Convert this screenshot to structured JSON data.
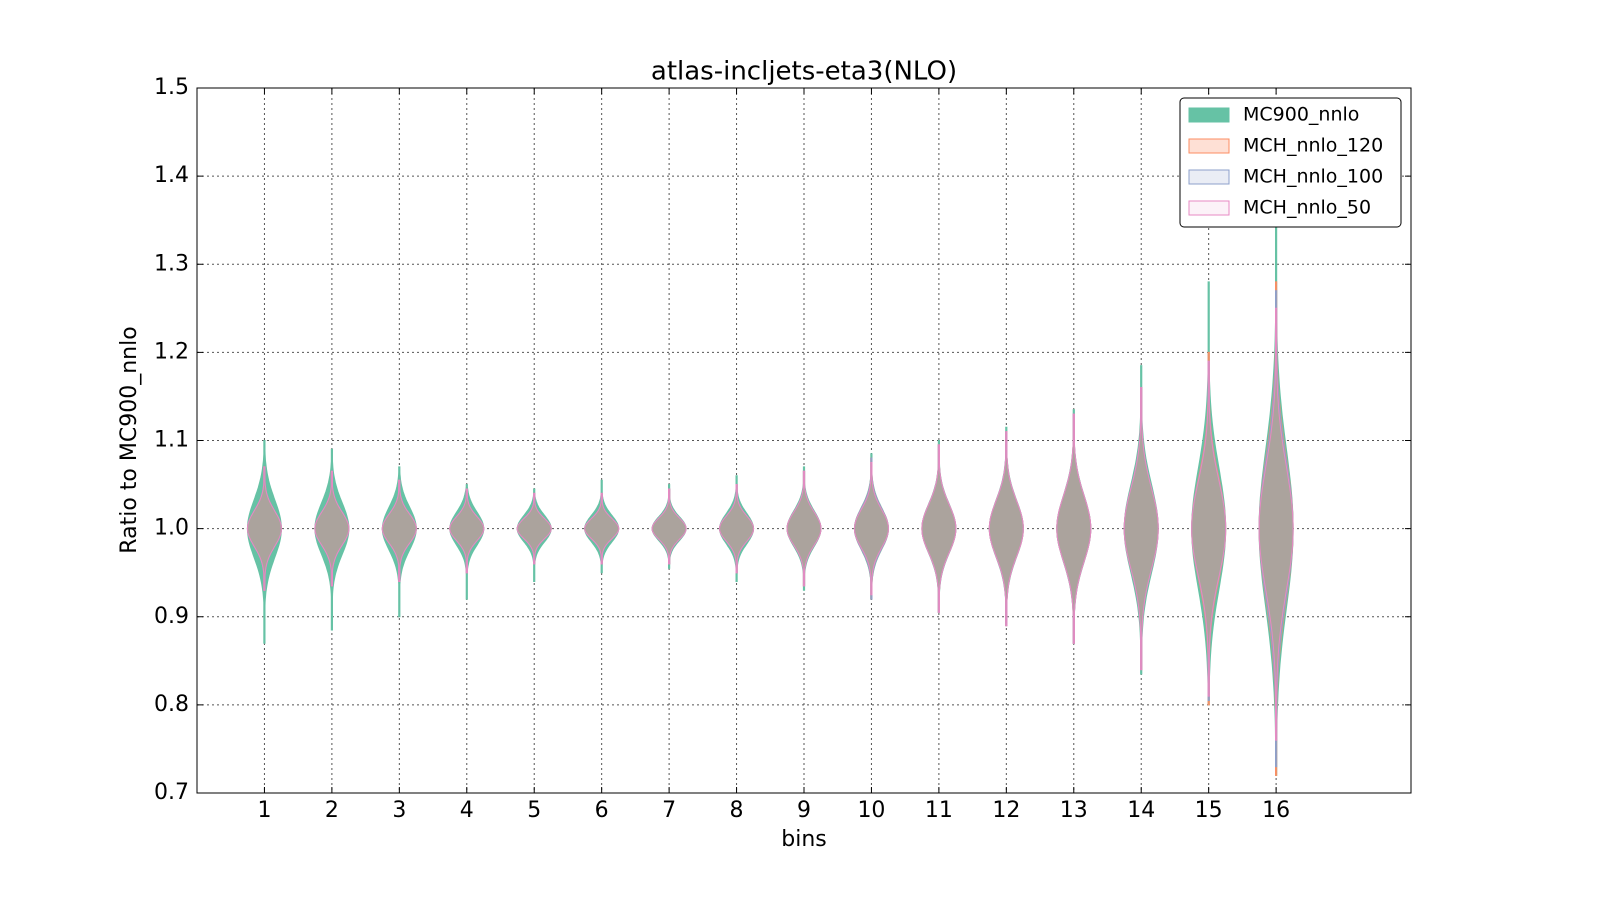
{
  "chart_data": {
    "type": "violin",
    "title": "atlas-incljets-eta3(NLO)",
    "x_label": "bins",
    "y_label": "Ratio to MC900_nnlo",
    "x": [
      1,
      2,
      3,
      4,
      5,
      6,
      7,
      8,
      9,
      10,
      11,
      12,
      13,
      14,
      15,
      16
    ],
    "xlim": [
      0,
      18
    ],
    "xticks": [
      1,
      2,
      3,
      4,
      5,
      6,
      7,
      8,
      9,
      10,
      11,
      12,
      13,
      14,
      15,
      16
    ],
    "ylim": [
      0.7,
      1.5
    ],
    "yticks": [
      0.7,
      0.8,
      0.9,
      {
        "value": 1.0,
        "label": "1.0"
      },
      1.1,
      1.2,
      1.3,
      1.4,
      1.5
    ],
    "grid": true,
    "legend": "upper right",
    "series": [
      {
        "name": "MC900_nnlo",
        "color": "#66c2a5",
        "values": [
          1,
          1,
          1,
          1,
          1,
          1,
          1,
          1,
          1,
          1,
          1,
          1,
          1,
          1,
          1,
          1
        ],
        "min": [
          0.87,
          0.885,
          0.9,
          0.92,
          0.94,
          0.95,
          0.955,
          0.94,
          0.93,
          0.92,
          0.905,
          0.89,
          0.87,
          0.835,
          0.8,
          0.72
        ],
        "max": [
          1.1,
          1.09,
          1.07,
          1.05,
          1.045,
          1.055,
          1.05,
          1.06,
          1.07,
          1.085,
          1.1,
          1.115,
          1.135,
          1.185,
          1.28,
          1.35
        ]
      },
      {
        "name": "MCH_nnlo_120",
        "color": "#fc8d62",
        "values": [
          1,
          1,
          1,
          1,
          1,
          1,
          1,
          1,
          1,
          1,
          1,
          1,
          1,
          1,
          1,
          1
        ],
        "min": [
          0.93,
          0.935,
          0.94,
          0.95,
          0.96,
          0.96,
          0.96,
          0.95,
          0.935,
          0.92,
          0.905,
          0.89,
          0.87,
          0.84,
          0.8,
          0.72
        ],
        "max": [
          1.07,
          1.065,
          1.055,
          1.045,
          1.04,
          1.04,
          1.045,
          1.05,
          1.065,
          1.08,
          1.095,
          1.11,
          1.13,
          1.16,
          1.2,
          1.28
        ]
      },
      {
        "name": "MCH_nnlo_100",
        "color": "#8da0cb",
        "values": [
          1,
          1,
          1,
          1,
          1,
          1,
          1,
          1,
          1,
          1,
          1,
          1,
          1,
          1,
          1,
          1
        ],
        "min": [
          0.93,
          0.935,
          0.94,
          0.95,
          0.96,
          0.96,
          0.96,
          0.95,
          0.935,
          0.92,
          0.905,
          0.89,
          0.87,
          0.84,
          0.805,
          0.73
        ],
        "max": [
          1.07,
          1.065,
          1.055,
          1.045,
          1.04,
          1.04,
          1.045,
          1.05,
          1.065,
          1.08,
          1.095,
          1.11,
          1.13,
          1.16,
          1.19,
          1.27
        ]
      },
      {
        "name": "MCH_nnlo_50",
        "color": "#e78ac3",
        "values": [
          1,
          1,
          1,
          1,
          1,
          1,
          1,
          1,
          1,
          1,
          1,
          1,
          1,
          1,
          1,
          1
        ],
        "min": [
          0.93,
          0.935,
          0.94,
          0.95,
          0.96,
          0.96,
          0.96,
          0.95,
          0.935,
          0.925,
          0.905,
          0.89,
          0.87,
          0.84,
          0.81,
          0.76
        ],
        "max": [
          1.07,
          1.065,
          1.055,
          1.045,
          1.04,
          1.04,
          1.045,
          1.05,
          1.065,
          1.075,
          1.095,
          1.11,
          1.13,
          1.16,
          1.19,
          1.25
        ]
      }
    ]
  }
}
